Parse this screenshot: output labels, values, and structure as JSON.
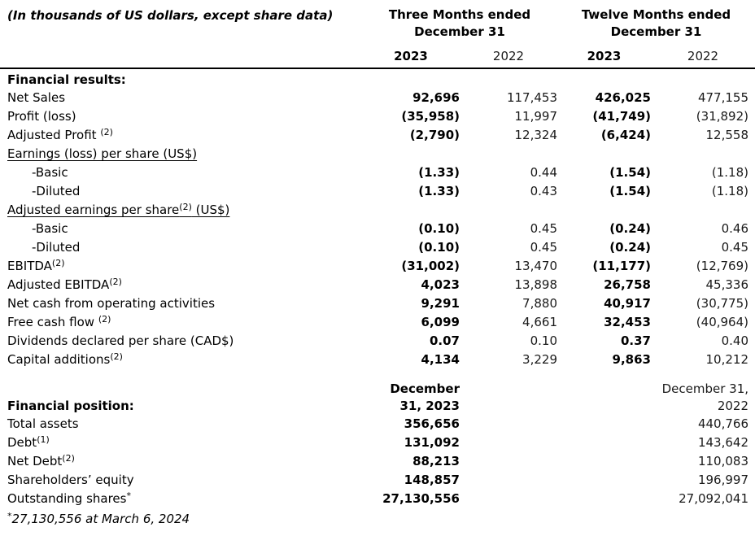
{
  "table": {
    "note": "(In thousands of US dollars, except share data)",
    "column_groups": [
      {
        "label": "Three Months ended December 31"
      },
      {
        "label": "Twelve Months ended December 31"
      }
    ],
    "year_headers": [
      "2023",
      "2022",
      "2023",
      "2022"
    ],
    "financial_results": {
      "header": "Financial results:",
      "rows": [
        {
          "label": "Net Sales",
          "values": [
            "92,696",
            "117,453",
            "426,025",
            "477,155"
          ]
        },
        {
          "label": "Profit (loss)",
          "values": [
            "(35,958)",
            "11,997",
            "(41,749)",
            "(31,892)"
          ]
        },
        {
          "label": "Adjusted Profit",
          "sup": "(2)",
          "sup_space": true,
          "values": [
            "(2,790)",
            "12,324",
            "(6,424)",
            "12,558"
          ]
        },
        {
          "label": "Earnings (loss) per share (US$)",
          "underline": true,
          "values": [
            "",
            "",
            "",
            ""
          ]
        },
        {
          "label": "-Basic",
          "indent": true,
          "values": [
            "(1.33)",
            "0.44",
            "(1.54)",
            "(1.18)"
          ]
        },
        {
          "label": "-Diluted",
          "indent": true,
          "values": [
            "(1.33)",
            "0.43",
            "(1.54)",
            "(1.18)"
          ]
        },
        {
          "label": "Adjusted earnings per share",
          "sup": "(2)",
          "suffix": " (US$)",
          "underline": true,
          "values": [
            "",
            "",
            "",
            ""
          ]
        },
        {
          "label": "-Basic",
          "indent": true,
          "values": [
            "(0.10)",
            "0.45",
            "(0.24)",
            "0.46"
          ]
        },
        {
          "label": "-Diluted",
          "indent": true,
          "values": [
            "(0.10)",
            "0.45",
            "(0.24)",
            "0.45"
          ]
        },
        {
          "label": "EBITDA",
          "sup": "(2)",
          "values": [
            "(31,002)",
            "13,470",
            "(11,177)",
            "(12,769)"
          ]
        },
        {
          "label": "Adjusted EBITDA",
          "sup": "(2)",
          "values": [
            "4,023",
            "13,898",
            "26,758",
            "45,336"
          ]
        },
        {
          "label": "Net cash from operating activities",
          "values": [
            "9,291",
            "7,880",
            "40,917",
            "(30,775)"
          ]
        },
        {
          "label": "Free cash flow",
          "sup": "(2)",
          "sup_space": true,
          "values": [
            "6,099",
            "4,661",
            "32,453",
            "(40,964)"
          ]
        },
        {
          "label": "Dividends declared per share (CAD$)",
          "values": [
            "0.07",
            "0.10",
            "0.37",
            "0.40"
          ]
        },
        {
          "label": "Capital additions",
          "sup": "(2)",
          "values": [
            "4,134",
            "3,229",
            "9,863",
            "10,212"
          ]
        }
      ]
    },
    "financial_position": {
      "header": "Financial position:",
      "period_headers": {
        "current": [
          "December",
          "31, 2023"
        ],
        "prior": [
          "December 31,",
          "2022"
        ]
      },
      "rows": [
        {
          "label": "Total assets",
          "current": "356,656",
          "prior": "440,766"
        },
        {
          "label": "Debt",
          "sup": "(1)",
          "current": "131,092",
          "prior": "143,642"
        },
        {
          "label": "Net Debt",
          "sup": "(2)",
          "current": "88,213",
          "prior": "110,083"
        },
        {
          "label": "Shareholders’ equity",
          "current": "148,857",
          "prior": "196,997"
        },
        {
          "label": "Outstanding shares",
          "sup": "*",
          "current": "27,130,556",
          "prior": "27,092,041"
        }
      ]
    },
    "footnote": {
      "marker": "*",
      "text": "27,130,556 at March 6, 2024"
    }
  }
}
